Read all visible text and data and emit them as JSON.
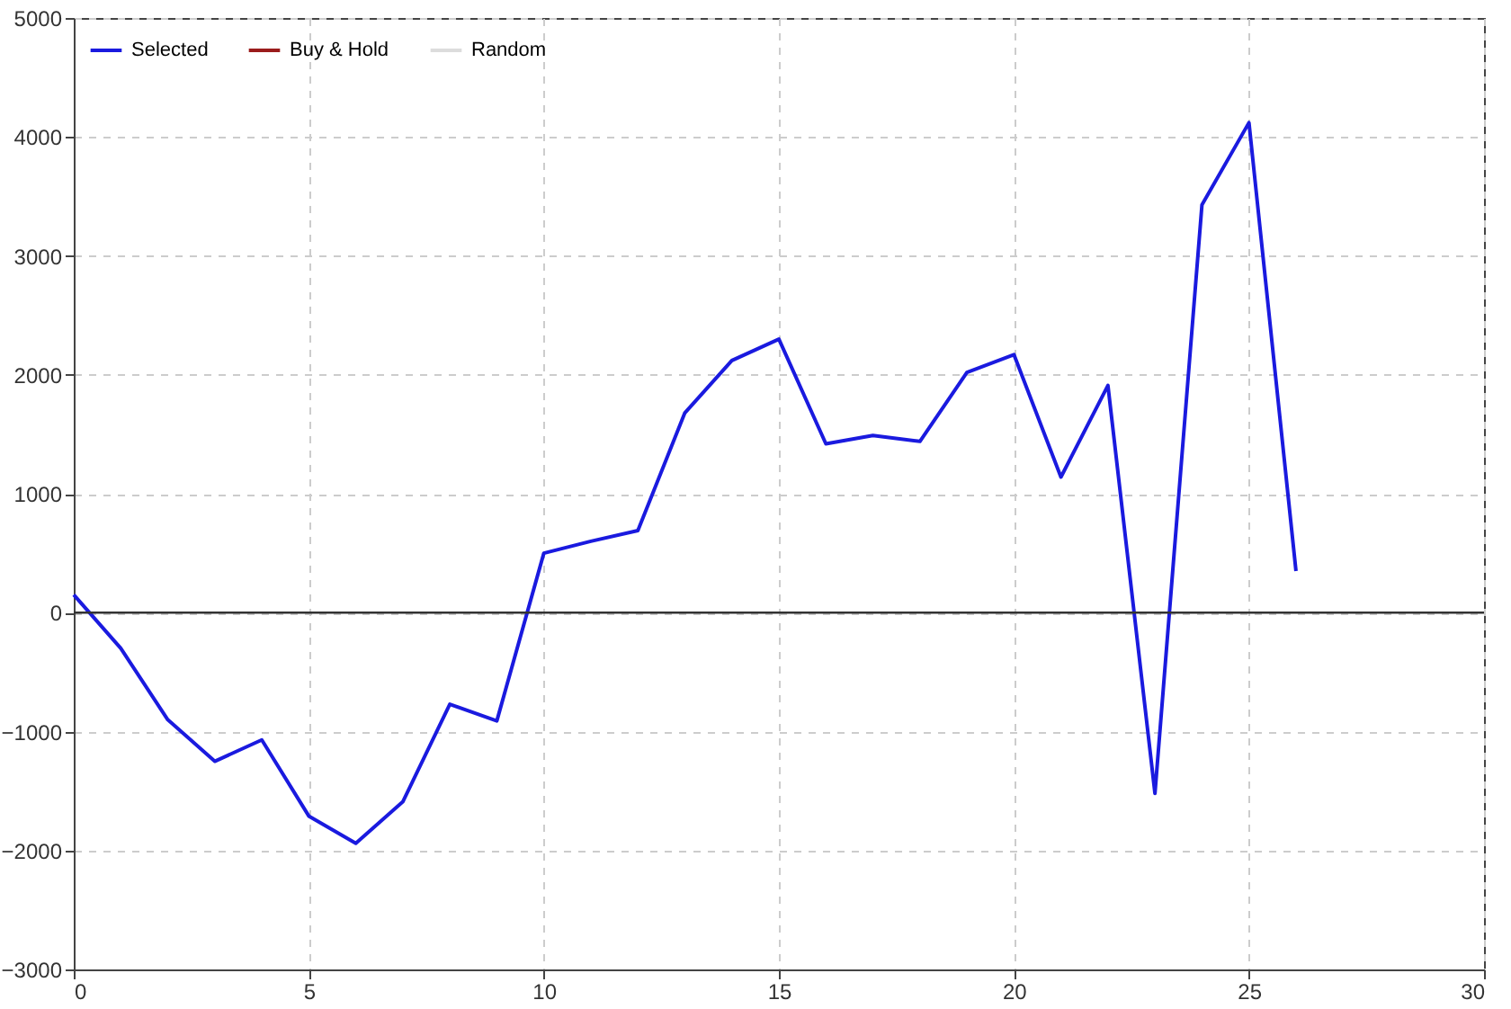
{
  "chart_data": {
    "type": "line",
    "x": [
      0,
      1,
      2,
      3,
      4,
      5,
      6,
      7,
      8,
      9,
      10,
      11,
      12,
      13,
      14,
      15,
      16,
      17,
      18,
      19,
      20,
      21,
      22,
      23,
      24,
      25,
      26
    ],
    "series": [
      {
        "name": "Selected",
        "color": "#1a1adf",
        "values": [
          150,
          -300,
          -900,
          -1250,
          -1070,
          -1710,
          -1940,
          -1590,
          -770,
          -910,
          500,
          600,
          690,
          1680,
          2120,
          2300,
          1420,
          1490,
          1440,
          2020,
          2170,
          1140,
          1910,
          -1520,
          3430,
          4120,
          350
        ]
      },
      {
        "name": "Buy & Hold",
        "color": "#9b1c1c",
        "values": [
          null,
          null,
          null,
          null,
          null,
          null,
          null,
          null,
          null,
          null,
          null,
          null,
          null,
          null,
          null,
          null,
          null,
          null,
          null,
          null,
          null,
          null,
          null,
          null,
          null,
          null,
          null
        ]
      },
      {
        "name": "Random",
        "color": "#dcdcdc",
        "values": [
          null,
          null,
          null,
          null,
          null,
          null,
          null,
          null,
          null,
          null,
          null,
          null,
          null,
          null,
          null,
          null,
          null,
          null,
          null,
          null,
          null,
          null,
          null,
          null,
          null,
          null,
          null
        ]
      }
    ],
    "xlim": [
      0,
      30
    ],
    "xticks": [
      0,
      5,
      10,
      15,
      20,
      25,
      30
    ],
    "ylim": [
      -3000,
      5000
    ],
    "yticks": [
      -3000,
      -2000,
      -1000,
      0,
      1000,
      2000,
      3000,
      4000,
      5000
    ],
    "ref_lines": [
      {
        "axis": "y",
        "value": 0,
        "color": "#333333"
      }
    ],
    "grid": true,
    "legend": "top left",
    "line_style": "solid"
  }
}
